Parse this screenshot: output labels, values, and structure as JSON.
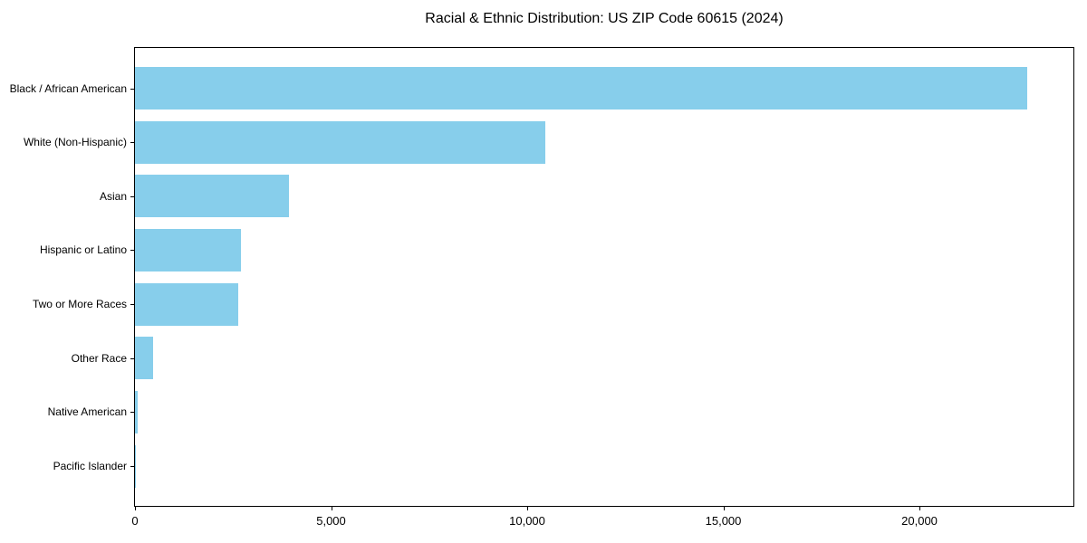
{
  "chart_data": {
    "type": "bar",
    "orientation": "horizontal",
    "title": "Racial & Ethnic Distribution: US ZIP Code 60615 (2024)",
    "categories": [
      "Black / African American",
      "White (Non-Hispanic)",
      "Asian",
      "Hispanic or Latino",
      "Two or More Races",
      "Other Race",
      "Native American",
      "Pacific Islander"
    ],
    "values": [
      22750,
      10450,
      3920,
      2700,
      2630,
      470,
      60,
      15
    ],
    "xlabel": "",
    "ylabel": "",
    "xlim": [
      0,
      23925
    ],
    "x_ticks": [
      0,
      5000,
      10000,
      15000,
      20000
    ],
    "x_tick_labels": [
      "0",
      "5,000",
      "10,000",
      "15,000",
      "20,000"
    ],
    "bar_color": "#87CEEB",
    "grid": false,
    "legend": false,
    "background_color": "#ffffff",
    "spine_color": "#000000"
  }
}
